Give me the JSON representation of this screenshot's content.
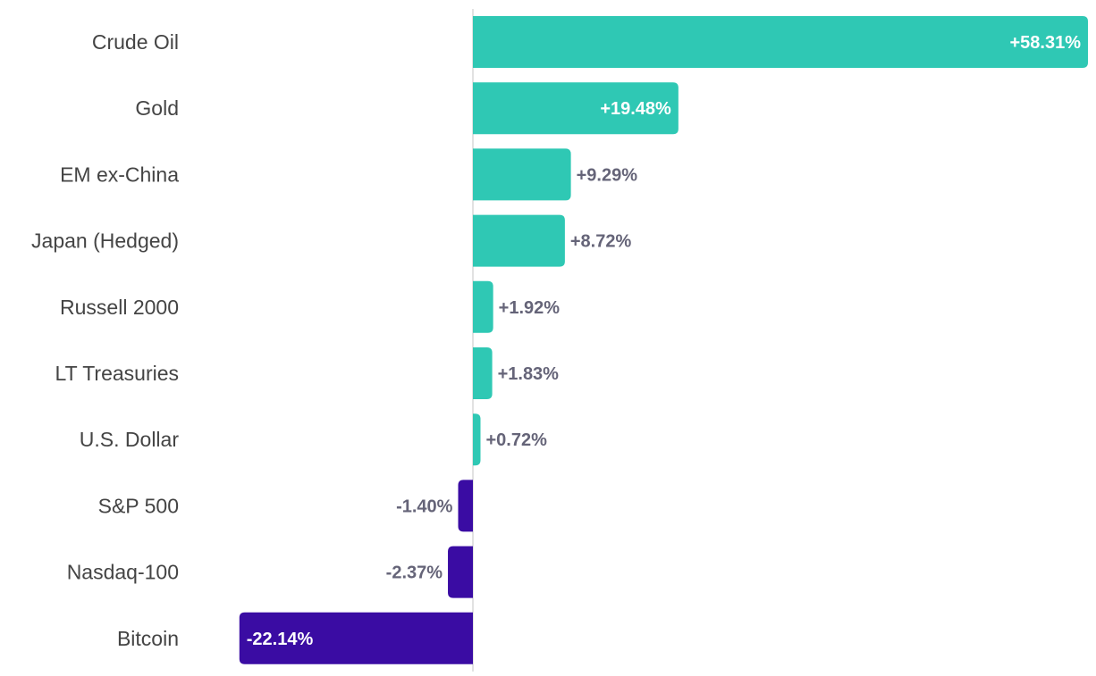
{
  "chart_data": {
    "type": "bar",
    "orientation": "horizontal",
    "title": "",
    "xlabel": "",
    "ylabel": "",
    "categories": [
      "Crude Oil",
      "Gold",
      "EM ex-China",
      "Japan (Hedged)",
      "Russell 2000",
      "LT Treasuries",
      "U.S. Dollar",
      "S&P 500",
      "Nasdaq-100",
      "Bitcoin"
    ],
    "values": [
      58.31,
      19.48,
      9.29,
      8.72,
      1.92,
      1.83,
      0.72,
      -1.4,
      -2.37,
      -22.14
    ],
    "labels": [
      "+58.31%",
      "+19.48%",
      "+9.29%",
      "+8.72%",
      "+1.92%",
      "+1.83%",
      "+0.72%",
      "-1.40%",
      "-2.37%",
      "-22.14%"
    ],
    "xlim": [
      -22.14,
      58.31
    ],
    "grid": false,
    "colors": {
      "positive": "#2fc8b4",
      "negative": "#3a0ca3",
      "value_text": "#656478",
      "inside_text": "#ffffff",
      "axis": "#d9d9d9"
    }
  }
}
